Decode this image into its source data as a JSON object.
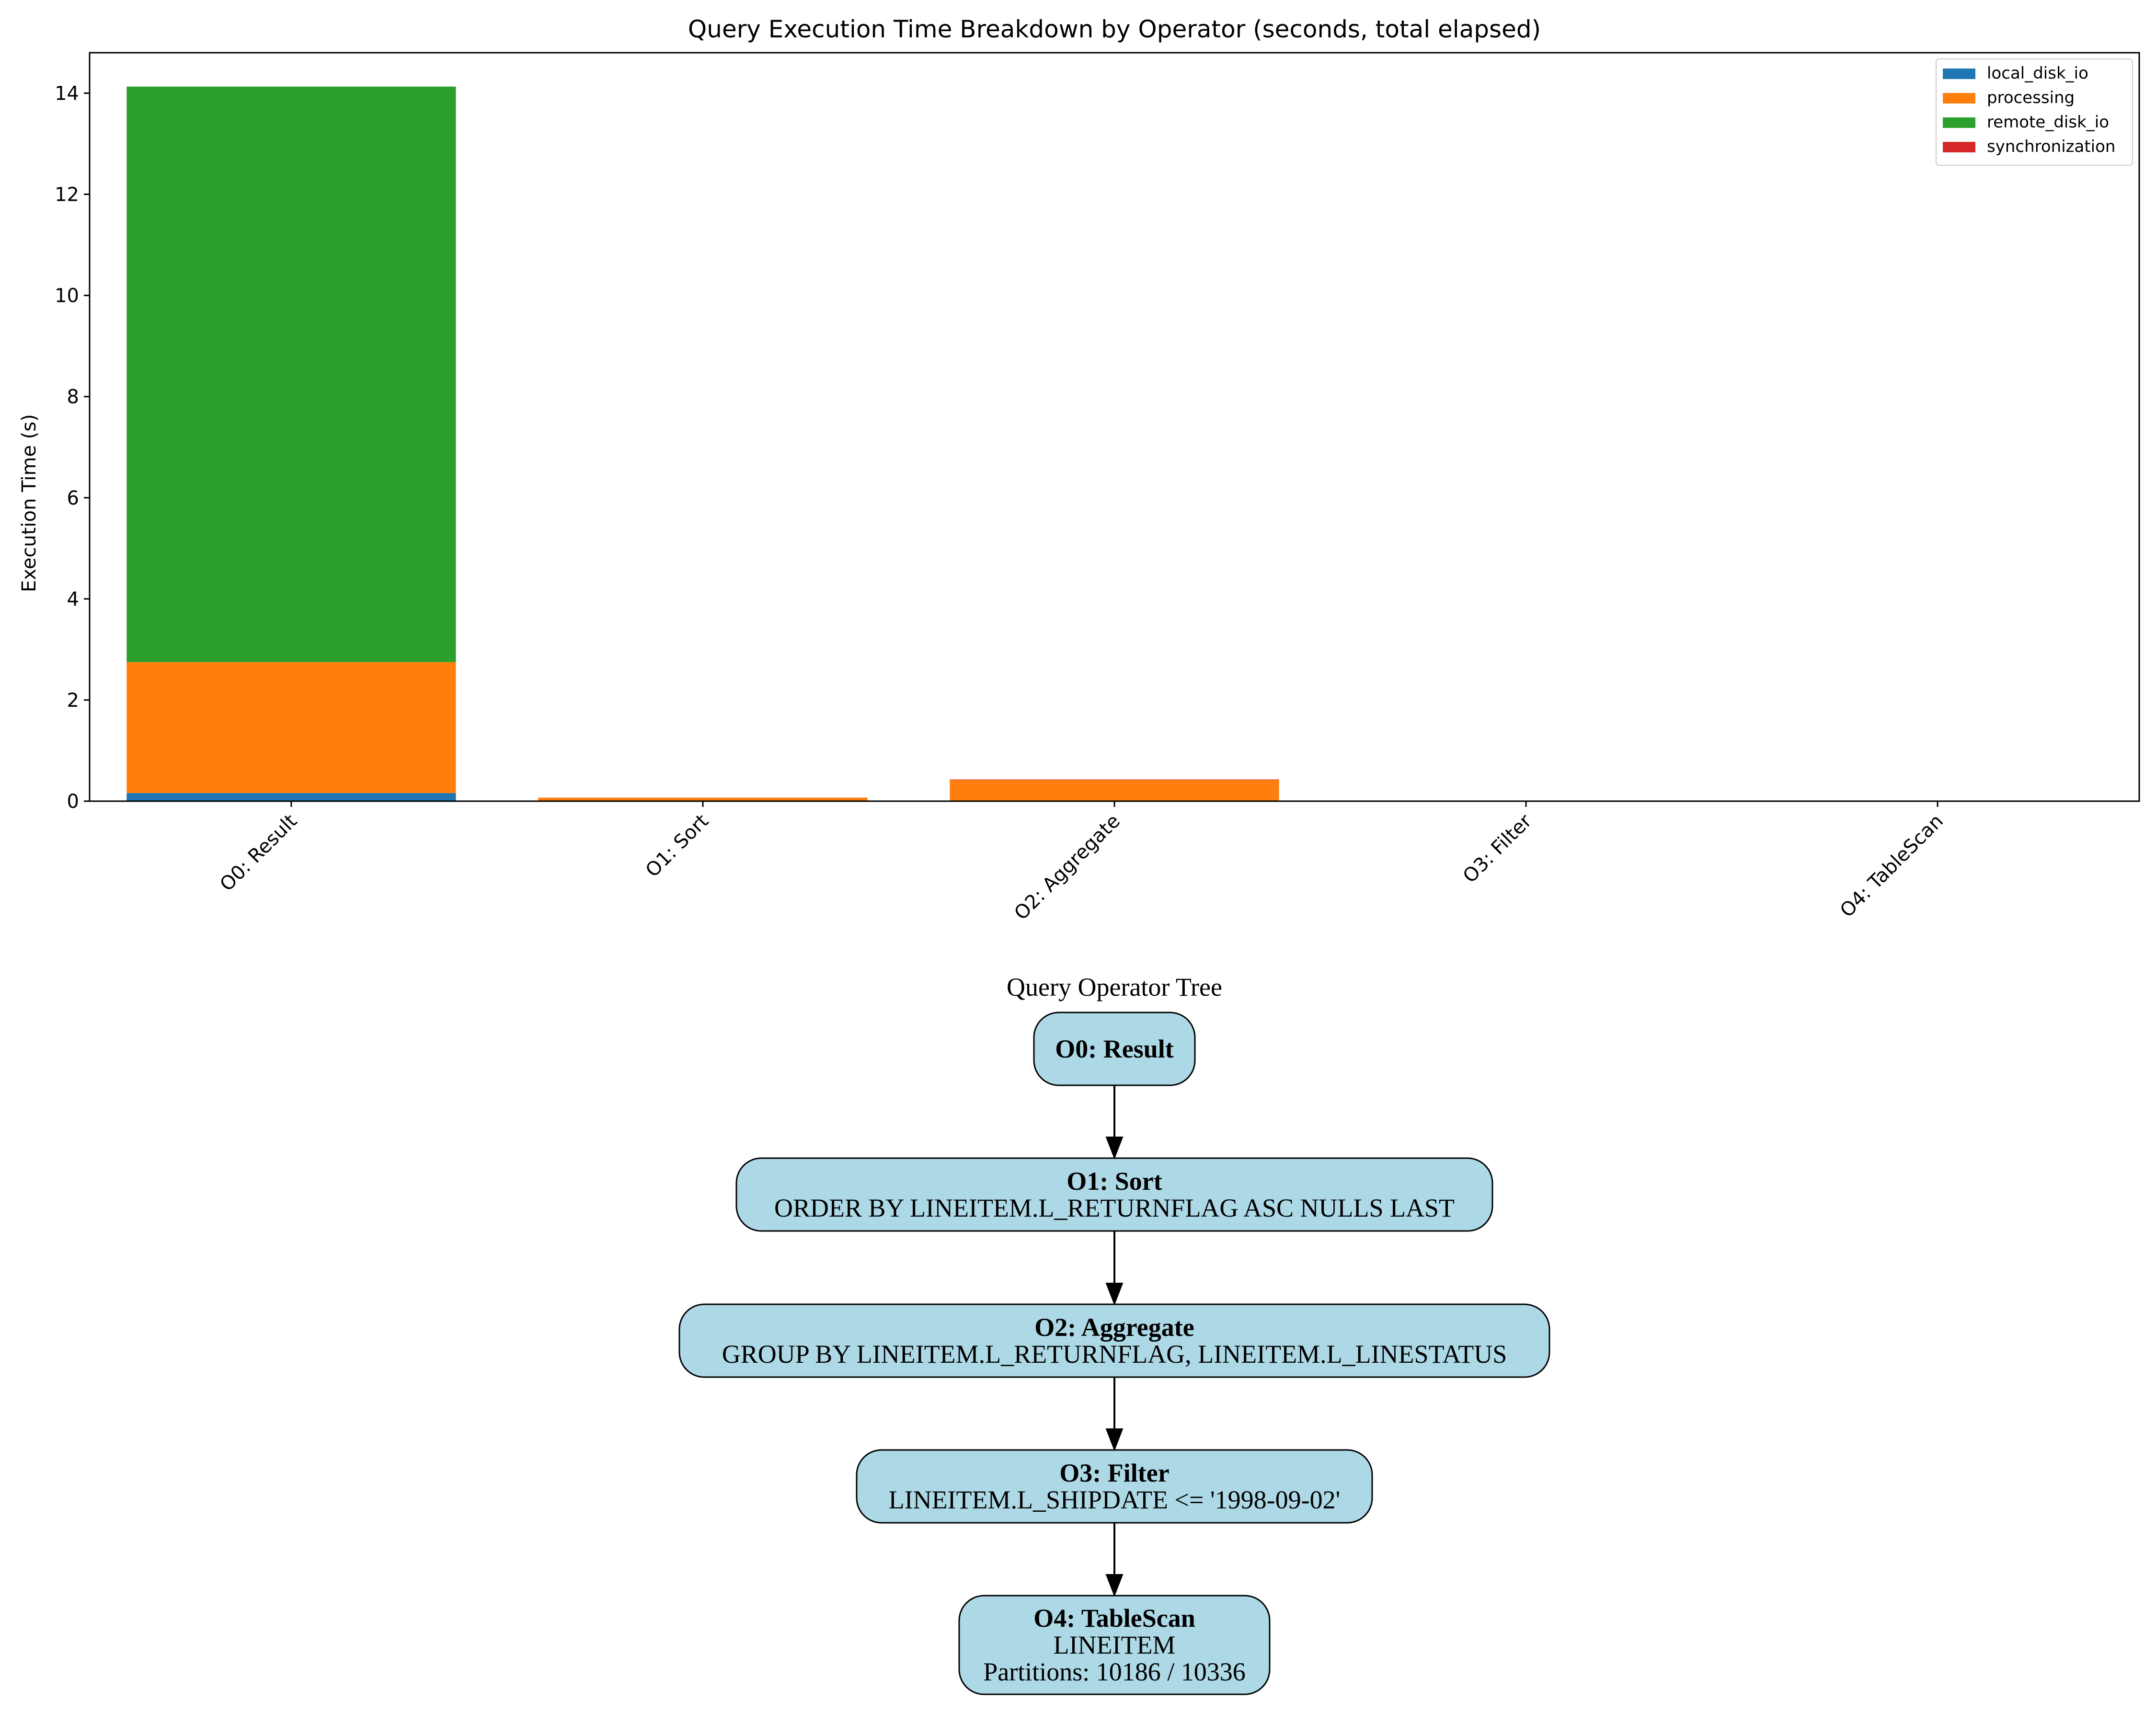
{
  "chart_data": {
    "type": "bar",
    "stacked": true,
    "title": "Query Execution Time Breakdown by Operator (seconds, total elapsed)",
    "xlabel": "",
    "ylabel": "Execution Time (s)",
    "ylim": [
      0,
      14.8
    ],
    "yticks": [
      "0",
      "2",
      "4",
      "6",
      "8",
      "10",
      "12",
      "14"
    ],
    "categories": [
      "O0: Result",
      "O1: Sort",
      "O2: Aggregate",
      "O3: Filter",
      "O4: TableScan"
    ],
    "legend_position": "top-right",
    "grid": false,
    "series": [
      {
        "name": "local_disk_io",
        "color": "#1f77b4",
        "values": [
          0.16,
          0,
          0,
          0,
          0
        ]
      },
      {
        "name": "processing",
        "color": "#ff7f0e",
        "values": [
          2.59,
          0.07,
          0.42,
          0,
          0
        ]
      },
      {
        "name": "remote_disk_io",
        "color": "#2ca02c",
        "values": [
          11.38,
          0,
          0,
          0,
          0
        ]
      },
      {
        "name": "synchronization",
        "color": "#d62728",
        "values": [
          0,
          0,
          0.01,
          0,
          0
        ]
      }
    ]
  },
  "tree": {
    "title": "Query Operator Tree",
    "node_fill": "#add8e6",
    "nodes": [
      {
        "title": "O0: Result",
        "lines": []
      },
      {
        "title": "O1: Sort",
        "lines": [
          "ORDER BY LINEITEM.L_RETURNFLAG ASC NULLS LAST"
        ]
      },
      {
        "title": "O2: Aggregate",
        "lines": [
          "GROUP BY LINEITEM.L_RETURNFLAG, LINEITEM.L_LINESTATUS"
        ]
      },
      {
        "title": "O3: Filter",
        "lines": [
          "LINEITEM.L_SHIPDATE <= '1998-09-02'"
        ]
      },
      {
        "title": "O4: TableScan",
        "lines": [
          "LINEITEM",
          "Partitions: 10186 / 10336"
        ]
      }
    ]
  }
}
